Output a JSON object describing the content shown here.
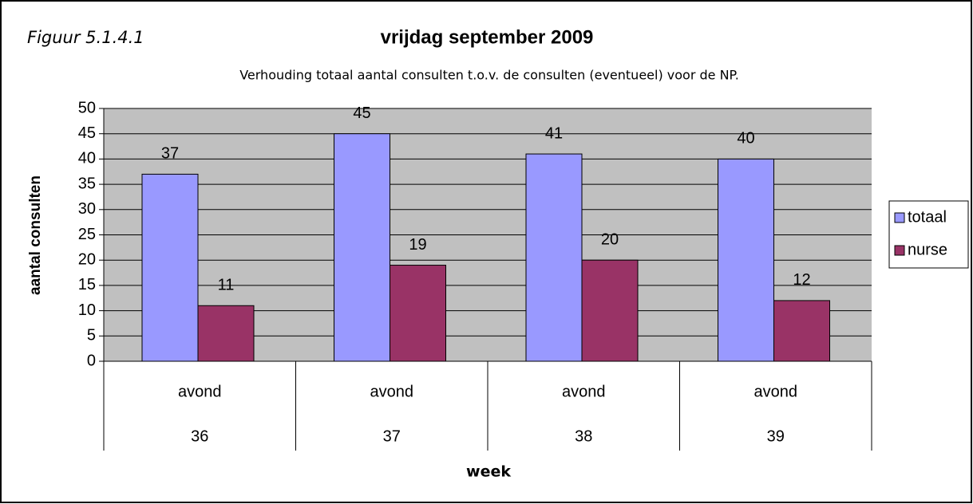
{
  "chart_data": {
    "type": "bar",
    "annotation": "Figuur 5.1.4.1",
    "title": "vrijdag september 2009",
    "subtitle": "Verhouding totaal aantal consulten t.o.v. de consulten (eventueel) voor de NP.",
    "y_label": "aantal consulten",
    "x_label": "week",
    "categories": [
      "avond",
      "avond",
      "avond",
      "avond"
    ],
    "category_groups": [
      "36",
      "37",
      "38",
      "39"
    ],
    "series": [
      {
        "name": "totaal",
        "color": "#9999ff",
        "values": [
          37,
          45,
          41,
          40
        ]
      },
      {
        "name": "nurse",
        "color": "#993366",
        "values": [
          11,
          19,
          20,
          12
        ]
      }
    ],
    "ylim": [
      0,
      50
    ],
    "yticks": [
      0,
      5,
      10,
      15,
      20,
      25,
      30,
      35,
      40,
      45,
      50
    ],
    "grid": true,
    "plot_background": "#c0c0c0",
    "legend": "right"
  }
}
